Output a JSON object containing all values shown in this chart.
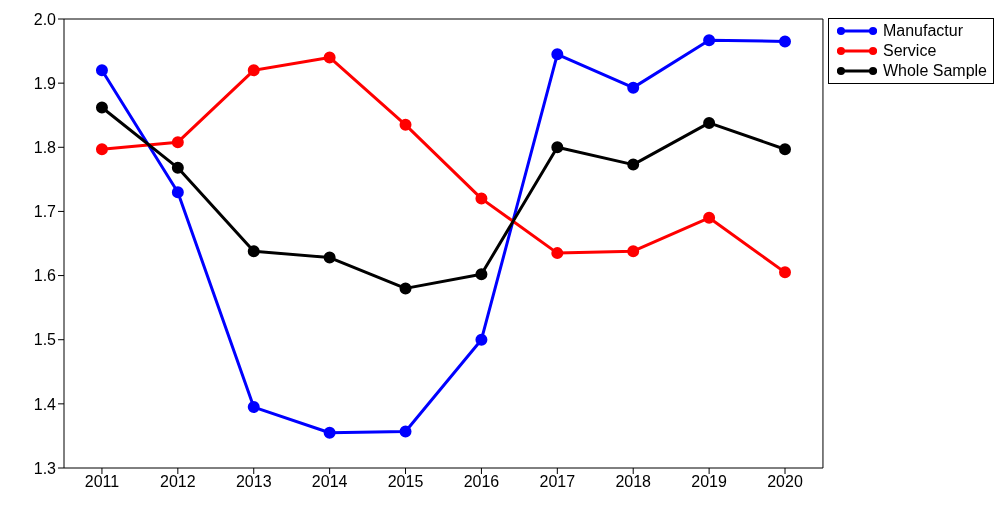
{
  "chart_data": {
    "type": "line",
    "categories": [
      "2011",
      "2012",
      "2013",
      "2014",
      "2015",
      "2016",
      "2017",
      "2018",
      "2019",
      "2020"
    ],
    "series": [
      {
        "name": "Manufactur",
        "color": "#0000ff",
        "values": [
          1.92,
          1.73,
          1.395,
          1.355,
          1.357,
          1.5,
          1.945,
          1.893,
          1.967,
          1.965
        ]
      },
      {
        "name": "Service",
        "color": "#ff0000",
        "values": [
          1.797,
          1.808,
          1.92,
          1.94,
          1.835,
          1.72,
          1.635,
          1.638,
          1.69,
          1.605
        ]
      },
      {
        "name": "Whole Sample",
        "color": "#000000",
        "values": [
          1.862,
          1.768,
          1.638,
          1.628,
          1.58,
          1.602,
          1.8,
          1.773,
          1.838,
          1.797
        ]
      }
    ],
    "ylim": [
      1.3,
      2.0
    ],
    "yticks": [
      {
        "value": 1.3,
        "label": "1.3"
      },
      {
        "value": 1.4,
        "label": "1.4"
      },
      {
        "value": 1.5,
        "label": "1.5"
      },
      {
        "value": 1.6,
        "label": "1.6"
      },
      {
        "value": 1.7,
        "label": "1.7"
      },
      {
        "value": 1.8,
        "label": "1.8"
      },
      {
        "value": 1.9,
        "label": "1.9"
      },
      {
        "value": 2.0,
        "label": "2.0"
      }
    ],
    "grid": false,
    "legend": "top right",
    "marker": "circle",
    "line_style": "solid"
  }
}
